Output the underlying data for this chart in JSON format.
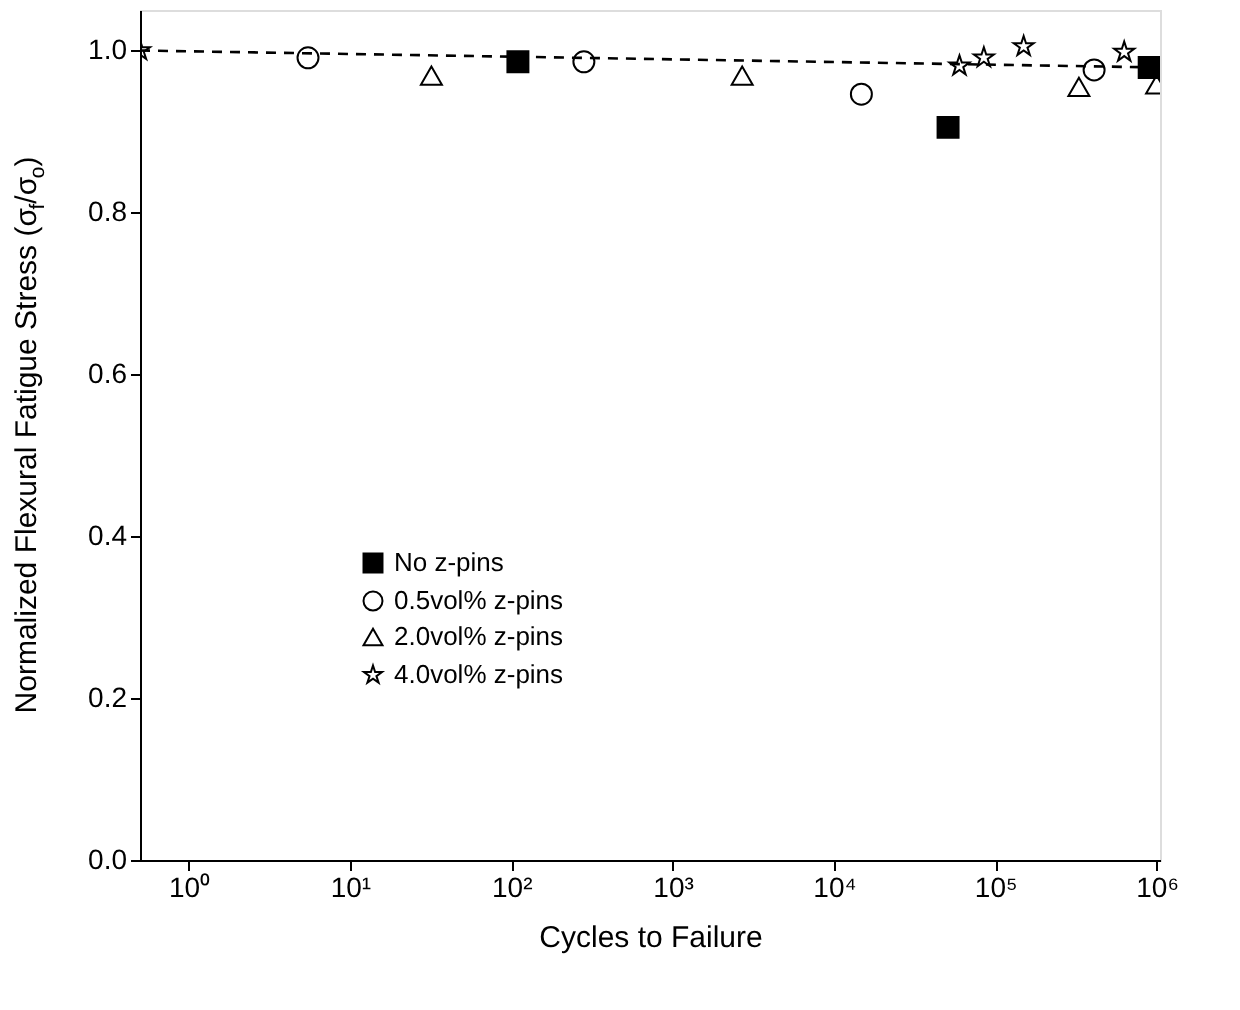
{
  "chart_data": {
    "type": "scatter",
    "xlabel": "Cycles to Failure",
    "ylabel": "Normalized Flexural Fatigue Stress (σ$_{f}$/σ$_{o}$)",
    "log": "x",
    "xlim": [
      0.5,
      1050000
    ],
    "ylim": [
      0,
      1.05
    ],
    "xticks": [
      {
        "value": 1,
        "label": "10⁰"
      },
      {
        "value": 10,
        "label": "10¹"
      },
      {
        "value": 100,
        "label": "10²"
      },
      {
        "value": 1000,
        "label": "10³"
      },
      {
        "value": 10000,
        "label": "10⁴"
      },
      {
        "value": 100000,
        "label": "10⁵"
      },
      {
        "value": 1000000,
        "label": "10⁶"
      }
    ],
    "yticks": [
      {
        "value": 0,
        "label": "0.0"
      },
      {
        "value": 0.2,
        "label": "0.2"
      },
      {
        "value": 0.4,
        "label": "0.4"
      },
      {
        "value": 0.6,
        "label": "0.6"
      },
      {
        "value": 0.8,
        "label": "0.8"
      },
      {
        "value": 1.0,
        "label": "1.0"
      }
    ],
    "legend": "left",
    "grid": false,
    "series": [
      {
        "name": "No z-pins",
        "color": "#000000",
        "marker": "square",
        "x": [
          110,
          51000,
          900000
        ],
        "values": [
          0.986,
          0.905,
          0.979
        ]
      },
      {
        "name": "0.5vol% z-pins",
        "color": "#000000",
        "marker": "circle",
        "x": [
          5.5,
          282,
          14800,
          410000
        ],
        "values": [
          0.991,
          0.986,
          0.946,
          0.976
        ]
      },
      {
        "name": "2.0vol% z-pins",
        "color": "#000000",
        "marker": "triangle",
        "x": [
          32,
          2700,
          330000,
          1000000
        ],
        "values": [
          0.969,
          0.969,
          0.955,
          0.958
        ]
      },
      {
        "name": "4.0vol% z-pins",
        "color": "#000000",
        "marker": "star",
        "x": [
          0.5,
          60000,
          85000,
          150000,
          630000
        ],
        "values": [
          1.0,
          0.981,
          0.991,
          1.005,
          0.998
        ]
      },
      {
        "type": "line",
        "color": "#000000",
        "line_style": "dashed",
        "x": [
          0.5,
          1050000
        ],
        "values": [
          1.0,
          0.979
        ]
      }
    ]
  }
}
